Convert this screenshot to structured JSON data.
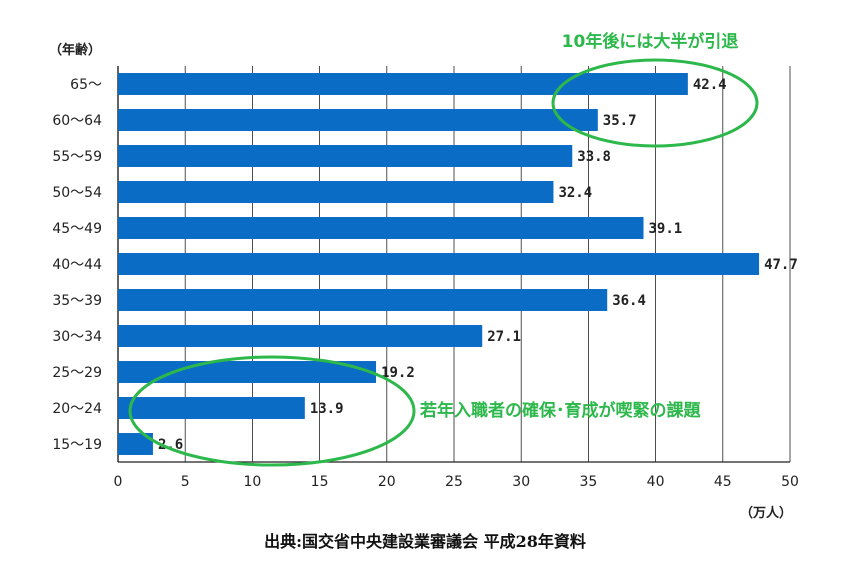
{
  "chart_data": {
    "type": "bar",
    "orientation": "horizontal",
    "categories": [
      "65～",
      "60～64",
      "55～59",
      "50～54",
      "45～49",
      "40～44",
      "35～39",
      "30～34",
      "25～29",
      "20～24",
      "15～19"
    ],
    "values": [
      42.4,
      35.7,
      33.8,
      32.4,
      39.1,
      47.7,
      36.4,
      27.1,
      19.2,
      13.9,
      2.6
    ],
    "value_labels": [
      "42.4",
      "35.7",
      "33.8",
      "32.4",
      "39.1",
      "47.7",
      "36.4",
      "27.1",
      "19.2",
      "13.9",
      "2.6"
    ],
    "xticks": [
      0,
      5,
      10,
      15,
      20,
      25,
      30,
      35,
      40,
      45,
      50
    ],
    "xlim": [
      0,
      50
    ],
    "xlabel": "（万人）",
    "ylabel": "（年齢）",
    "grid": true,
    "bar_color": "#0a6cc4",
    "annotations": [
      {
        "text": "10年後には大半が引退",
        "color": "#2db84b",
        "target_categories": [
          "65～",
          "60～64"
        ]
      },
      {
        "text": "若年入職者の確保･育成が喫緊の課題",
        "color": "#2db84b",
        "target_categories": [
          "25～29",
          "20～24",
          "15～19"
        ]
      }
    ]
  },
  "source_text": "出典:国交省中央建設業審議会  平成28年資料"
}
